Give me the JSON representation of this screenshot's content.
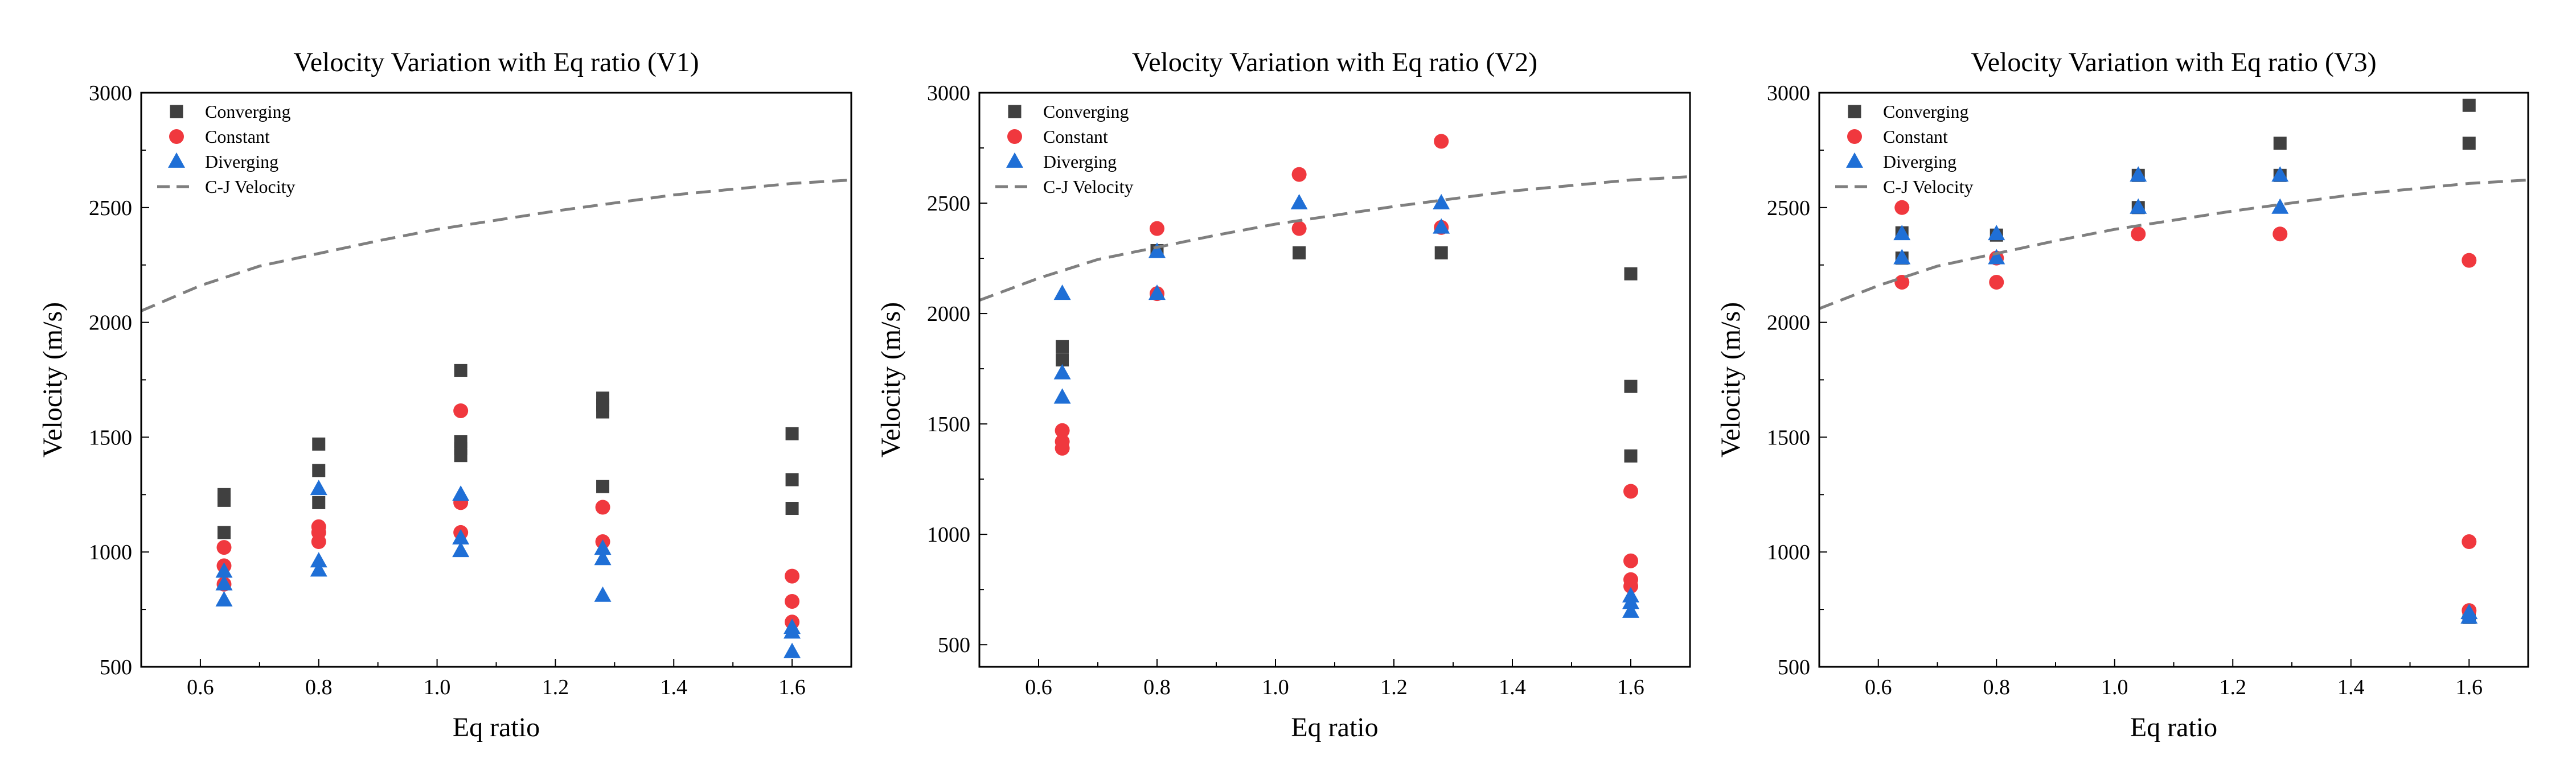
{
  "chart_data": [
    {
      "type": "scatter",
      "title": "Velocity Variation with Eq ratio (V1)",
      "xlabel": "Eq ratio",
      "ylabel": "Velocity (m/s)",
      "xlim": [
        0.5,
        1.7
      ],
      "ylim": [
        500,
        3000
      ],
      "xticks": [
        0.6,
        0.8,
        1.0,
        1.2,
        1.4,
        1.6
      ],
      "xtick_labels": [
        "0.6",
        "0.8",
        "1.0",
        "1.2",
        "1.4",
        "1.6"
      ],
      "yticks": [
        500,
        1000,
        1500,
        2000,
        2500,
        3000
      ],
      "ytick_labels": [
        "500",
        "1000",
        "1500",
        "2000",
        "2500",
        "3000"
      ],
      "legend_position": "top-left",
      "series": [
        {
          "name": "Converging",
          "marker": "square",
          "color": "#404040",
          "points": [
            [
              0.64,
              1250
            ],
            [
              0.64,
              1225
            ],
            [
              0.64,
              1085
            ],
            [
              0.8,
              1470
            ],
            [
              0.8,
              1355
            ],
            [
              0.8,
              1215
            ],
            [
              1.04,
              1790
            ],
            [
              1.04,
              1480
            ],
            [
              1.04,
              1450
            ],
            [
              1.04,
              1420
            ],
            [
              1.28,
              1670
            ],
            [
              1.28,
              1640
            ],
            [
              1.28,
              1610
            ],
            [
              1.28,
              1285
            ],
            [
              1.6,
              1515
            ],
            [
              1.6,
              1315
            ],
            [
              1.6,
              1190
            ]
          ]
        },
        {
          "name": "Constant",
          "marker": "circle",
          "color": "#f0383e",
          "points": [
            [
              0.64,
              1020
            ],
            [
              0.64,
              940
            ],
            [
              0.64,
              860
            ],
            [
              0.8,
              1110
            ],
            [
              0.8,
              1085
            ],
            [
              0.8,
              1045
            ],
            [
              1.04,
              1615
            ],
            [
              1.04,
              1215
            ],
            [
              1.04,
              1085
            ],
            [
              1.28,
              1195
            ],
            [
              1.28,
              1045
            ],
            [
              1.6,
              895
            ],
            [
              1.6,
              785
            ],
            [
              1.6,
              695
            ]
          ]
        },
        {
          "name": "Diverging",
          "marker": "triangle",
          "color": "#1f6fd6",
          "points": [
            [
              0.64,
              915
            ],
            [
              0.64,
              860
            ],
            [
              0.64,
              790
            ],
            [
              0.8,
              1275
            ],
            [
              0.8,
              960
            ],
            [
              0.8,
              920
            ],
            [
              1.04,
              1250
            ],
            [
              1.04,
              1060
            ],
            [
              1.04,
              1005
            ],
            [
              1.28,
              1015
            ],
            [
              1.28,
              970
            ],
            [
              1.28,
              810
            ],
            [
              1.6,
              670
            ],
            [
              1.6,
              650
            ],
            [
              1.6,
              565
            ]
          ]
        },
        {
          "name": "C-J Velocity",
          "line": "dashed",
          "color": "#7f7f7f",
          "points": [
            [
              0.5,
              2050
            ],
            [
              0.6,
              2160
            ],
            [
              0.7,
              2245
            ],
            [
              0.8,
              2300
            ],
            [
              0.9,
              2355
            ],
            [
              1.0,
              2405
            ],
            [
              1.1,
              2445
            ],
            [
              1.2,
              2485
            ],
            [
              1.3,
              2520
            ],
            [
              1.4,
              2555
            ],
            [
              1.5,
              2580
            ],
            [
              1.6,
              2605
            ],
            [
              1.7,
              2620
            ]
          ]
        }
      ]
    },
    {
      "type": "scatter",
      "title": "Velocity Variation with Eq ratio (V2)",
      "xlabel": "Eq ratio",
      "ylabel": "Velocity (m/s)",
      "xlim": [
        0.5,
        1.7
      ],
      "ylim": [
        400,
        3000
      ],
      "xticks": [
        0.6,
        0.8,
        1.0,
        1.2,
        1.4,
        1.6
      ],
      "xtick_labels": [
        "0.6",
        "0.8",
        "1.0",
        "1.2",
        "1.4",
        "1.6"
      ],
      "yticks": [
        500,
        1000,
        1500,
        2000,
        2500,
        3000
      ],
      "ytick_labels": [
        "500",
        "1000",
        "1500",
        "2000",
        "2500",
        "3000"
      ],
      "legend_position": "top-left",
      "series": [
        {
          "name": "Converging",
          "marker": "square",
          "color": "#404040",
          "points": [
            [
              0.64,
              1850
            ],
            [
              0.64,
              1790
            ],
            [
              0.8,
              2285
            ],
            [
              1.04,
              2275
            ],
            [
              1.28,
              2275
            ],
            [
              1.6,
              2180
            ],
            [
              1.6,
              1670
            ],
            [
              1.6,
              1355
            ]
          ]
        },
        {
          "name": "Constant",
          "marker": "circle",
          "color": "#f0383e",
          "points": [
            [
              0.64,
              1470
            ],
            [
              0.64,
              1420
            ],
            [
              0.64,
              1390
            ],
            [
              0.8,
              2385
            ],
            [
              0.8,
              2090
            ],
            [
              1.04,
              2630
            ],
            [
              1.04,
              2385
            ],
            [
              1.28,
              2780
            ],
            [
              1.28,
              2390
            ],
            [
              1.6,
              1195
            ],
            [
              1.6,
              880
            ],
            [
              1.6,
              795
            ],
            [
              1.6,
              765
            ]
          ]
        },
        {
          "name": "Diverging",
          "marker": "triangle",
          "color": "#1f6fd6",
          "points": [
            [
              0.64,
              2090
            ],
            [
              0.64,
              1730
            ],
            [
              0.64,
              1620
            ],
            [
              0.8,
              2280
            ],
            [
              0.8,
              2090
            ],
            [
              1.04,
              2500
            ],
            [
              1.28,
              2500
            ],
            [
              1.28,
              2390
            ],
            [
              1.6,
              720
            ],
            [
              1.6,
              690
            ],
            [
              1.6,
              650
            ]
          ]
        },
        {
          "name": "C-J Velocity",
          "line": "dashed",
          "color": "#7f7f7f",
          "points": [
            [
              0.5,
              2060
            ],
            [
              0.6,
              2160
            ],
            [
              0.7,
              2245
            ],
            [
              0.8,
              2300
            ],
            [
              0.9,
              2355
            ],
            [
              1.0,
              2405
            ],
            [
              1.1,
              2445
            ],
            [
              1.2,
              2485
            ],
            [
              1.3,
              2520
            ],
            [
              1.4,
              2555
            ],
            [
              1.5,
              2580
            ],
            [
              1.6,
              2605
            ],
            [
              1.7,
              2620
            ]
          ]
        }
      ]
    },
    {
      "type": "scatter",
      "title": "Velocity Variation with Eq ratio (V3)",
      "xlabel": "Eq ratio",
      "ylabel": "Velocity (m/s)",
      "xlim": [
        0.5,
        1.7
      ],
      "ylim": [
        500,
        3000
      ],
      "xticks": [
        0.6,
        0.8,
        1.0,
        1.2,
        1.4,
        1.6
      ],
      "xtick_labels": [
        "0.6",
        "0.8",
        "1.0",
        "1.2",
        "1.4",
        "1.6"
      ],
      "yticks": [
        500,
        1000,
        1500,
        2000,
        2500,
        3000
      ],
      "ytick_labels": [
        "500",
        "1000",
        "1500",
        "2000",
        "2500",
        "3000"
      ],
      "legend_position": "top-left",
      "series": [
        {
          "name": "Converging",
          "marker": "square",
          "color": "#404040",
          "points": [
            [
              0.64,
              2390
            ],
            [
              0.64,
              2280
            ],
            [
              0.8,
              2380
            ],
            [
              1.04,
              2640
            ],
            [
              1.04,
              2500
            ],
            [
              1.28,
              2780
            ],
            [
              1.28,
              2640
            ],
            [
              1.6,
              2945
            ],
            [
              1.6,
              2780
            ],
            [
              1.6,
              730
            ],
            [
              1.6,
              715
            ]
          ]
        },
        {
          "name": "Constant",
          "marker": "circle",
          "color": "#f0383e",
          "points": [
            [
              0.64,
              2500
            ],
            [
              0.64,
              2175
            ],
            [
              0.8,
              2280
            ],
            [
              0.8,
              2175
            ],
            [
              1.04,
              2385
            ],
            [
              1.28,
              2385
            ],
            [
              1.6,
              2270
            ],
            [
              1.6,
              1045
            ],
            [
              1.6,
              745
            ]
          ]
        },
        {
          "name": "Diverging",
          "marker": "triangle",
          "color": "#1f6fd6",
          "points": [
            [
              0.64,
              2385
            ],
            [
              0.64,
              2280
            ],
            [
              0.8,
              2385
            ],
            [
              0.8,
              2280
            ],
            [
              1.04,
              2640
            ],
            [
              1.04,
              2500
            ],
            [
              1.28,
              2640
            ],
            [
              1.28,
              2500
            ],
            [
              1.6,
              735
            ],
            [
              1.6,
              715
            ]
          ]
        },
        {
          "name": "C-J Velocity",
          "line": "dashed",
          "color": "#7f7f7f",
          "points": [
            [
              0.5,
              2060
            ],
            [
              0.6,
              2160
            ],
            [
              0.7,
              2245
            ],
            [
              0.8,
              2300
            ],
            [
              0.9,
              2355
            ],
            [
              1.0,
              2405
            ],
            [
              1.1,
              2445
            ],
            [
              1.2,
              2485
            ],
            [
              1.3,
              2520
            ],
            [
              1.4,
              2555
            ],
            [
              1.5,
              2580
            ],
            [
              1.6,
              2605
            ],
            [
              1.7,
              2620
            ]
          ]
        }
      ]
    }
  ]
}
